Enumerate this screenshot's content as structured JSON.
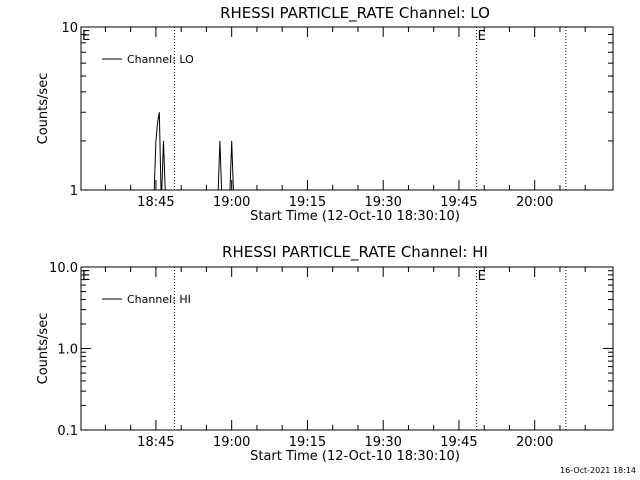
{
  "footer": {
    "timestamp": "16-Oct-2021 18:14"
  },
  "chart_data": [
    {
      "type": "line",
      "title": "RHESSI PARTICLE_RATE Channel: LO",
      "xlabel": "Start Time (12-Oct-10 18:30:10)",
      "ylabel": "Counts/sec",
      "yscale": "log",
      "ylim": [
        1,
        10
      ],
      "y_ticks": [
        "1",
        "10"
      ],
      "xlim": [
        "18:30:10",
        "20:15:30"
      ],
      "x_ticks": [
        "18:45",
        "19:00",
        "19:15",
        "19:30",
        "19:45",
        "20:00"
      ],
      "legend": {
        "label": "Channel: LO",
        "placement": "top-left"
      },
      "event_markers": [
        {
          "time": "18:30:10",
          "label": "E"
        },
        {
          "time": "18:48:40",
          "label": ""
        },
        {
          "time": "19:48:30",
          "label": "E"
        },
        {
          "time": "20:06:10",
          "label": ""
        }
      ],
      "series": [
        {
          "name": "Channel: LO",
          "points": [
            [
              "18:44:40",
              1
            ],
            [
              "18:45:00",
              2.0
            ],
            [
              "18:45:20",
              2.6
            ],
            [
              "18:45:40",
              3.0
            ],
            [
              "18:46:00",
              1
            ],
            [
              "18:46:10",
              1
            ],
            [
              "18:46:30",
              2.0
            ],
            [
              "18:46:50",
              1
            ],
            [
              "18:57:20",
              1
            ],
            [
              "18:57:40",
              2.0
            ],
            [
              "18:58:00",
              1
            ],
            [
              "18:59:40",
              1
            ],
            [
              "19:00:00",
              2.0
            ],
            [
              "19:00:20",
              1
            ]
          ]
        }
      ]
    },
    {
      "type": "line",
      "title": "RHESSI PARTICLE_RATE Channel: HI",
      "xlabel": "Start Time (12-Oct-10 18:30:10)",
      "ylabel": "Counts/sec",
      "yscale": "log",
      "ylim": [
        0.1,
        10
      ],
      "y_ticks": [
        "0.1",
        "1.0",
        "10.0"
      ],
      "xlim": [
        "18:30:10",
        "20:15:30"
      ],
      "x_ticks": [
        "18:45",
        "19:00",
        "19:15",
        "19:30",
        "19:45",
        "20:00"
      ],
      "legend": {
        "label": "Channel: HI",
        "placement": "top-left"
      },
      "event_markers": [
        {
          "time": "18:30:10",
          "label": "E"
        },
        {
          "time": "18:48:40",
          "label": ""
        },
        {
          "time": "19:48:30",
          "label": "E"
        },
        {
          "time": "20:06:10",
          "label": ""
        }
      ],
      "series": [
        {
          "name": "Channel: HI",
          "points": []
        }
      ]
    }
  ]
}
